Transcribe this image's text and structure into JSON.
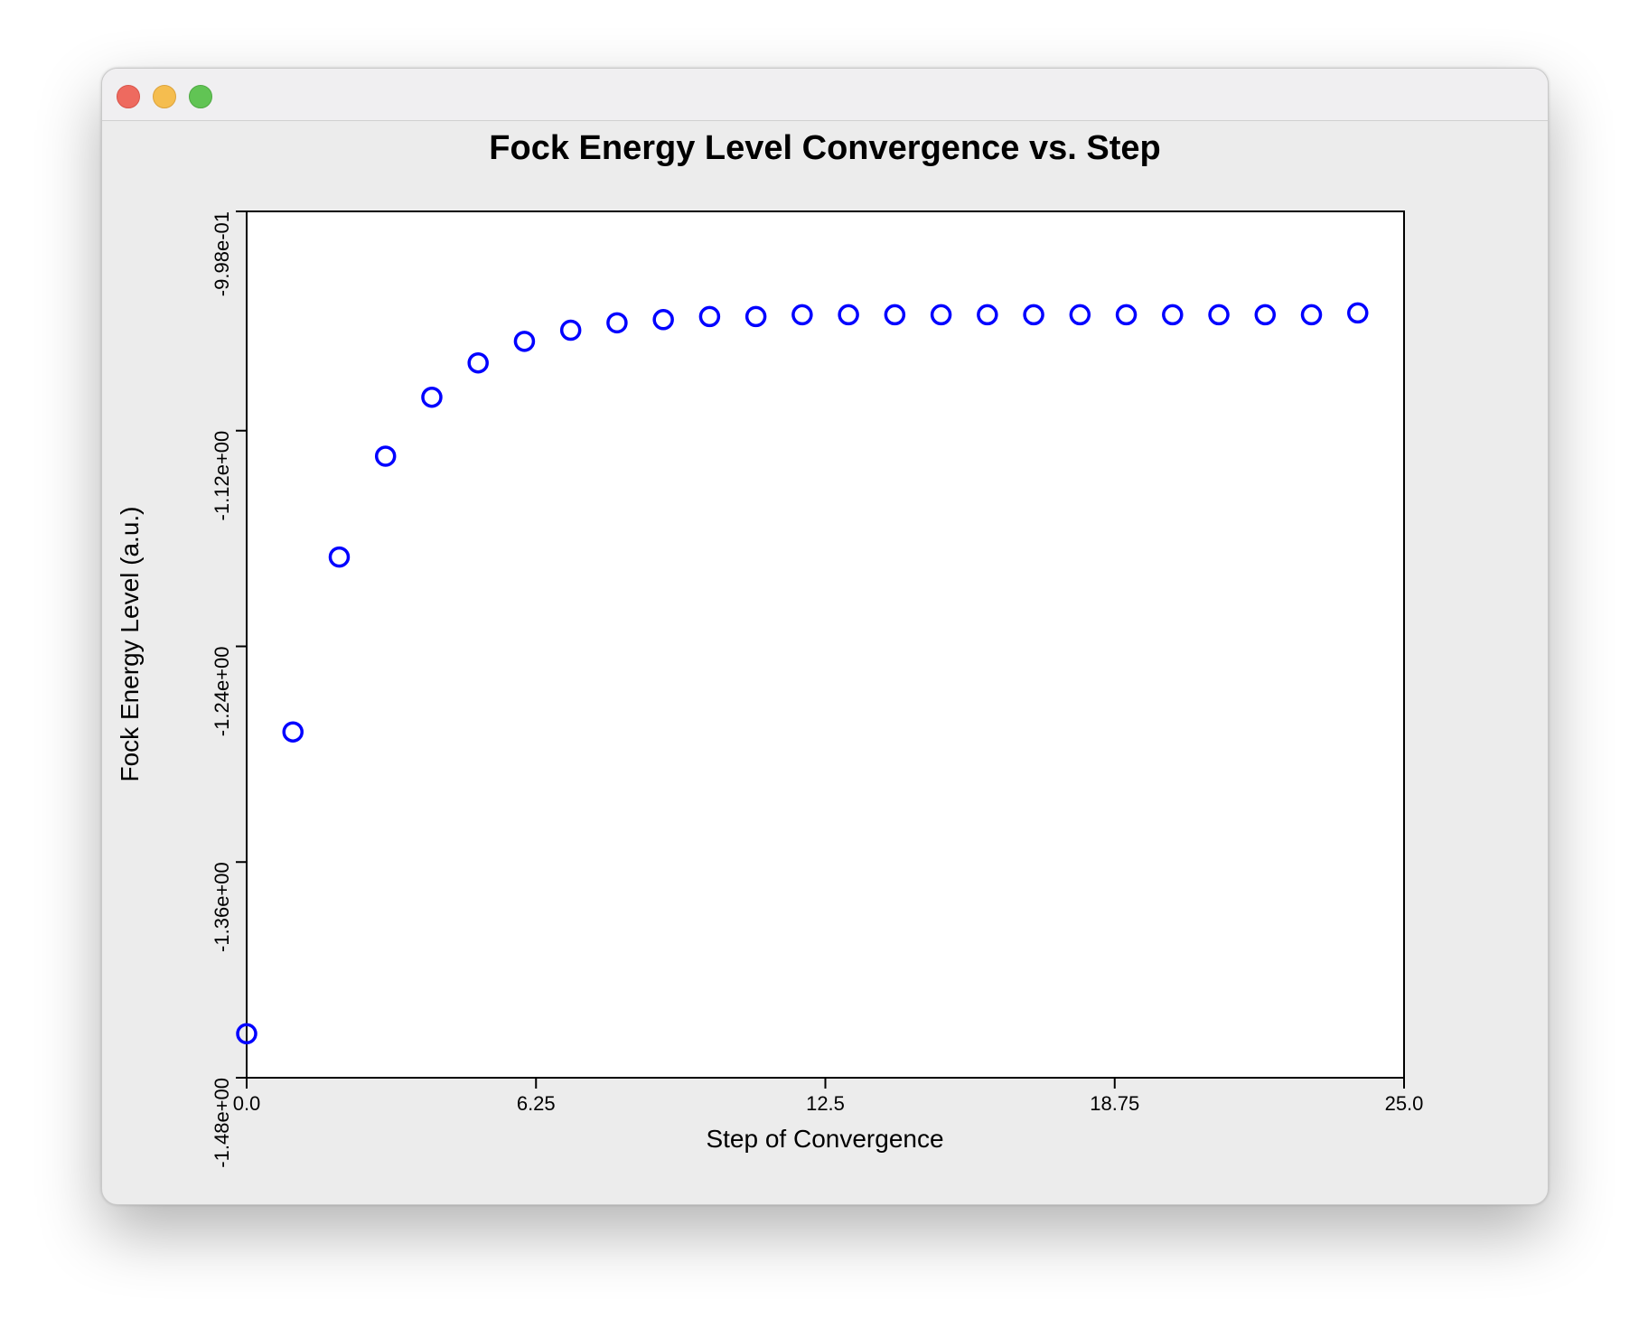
{
  "window": {
    "controls": [
      "close",
      "minimize",
      "zoom"
    ]
  },
  "chart_data": {
    "type": "scatter",
    "title": "Fock Energy Level Convergence vs. Step",
    "xlabel": "Step of Convergence",
    "ylabel": "Fock Energy Level (a.u.)",
    "xlim": [
      0.0,
      25.0
    ],
    "ylim": [
      -1.48,
      -0.998
    ],
    "x_ticks": [
      0.0,
      6.25,
      12.5,
      18.75,
      25.0
    ],
    "x_tick_labels": [
      "0.0",
      "6.25",
      "12.5",
      "18.75",
      "25.0"
    ],
    "y_ticks": [
      -1.48,
      -1.36,
      -1.24,
      -1.12,
      -0.998
    ],
    "y_tick_labels": [
      "-1.48e+00",
      "-1.36e+00",
      "-1.24e+00",
      "-1.12e+00",
      "-9.98e-01"
    ],
    "grid": false,
    "marker": "open-circle",
    "marker_color": "#0000ff",
    "points": [
      {
        "x": 0,
        "y": -1.4555
      },
      {
        "x": 1,
        "y": -1.2876
      },
      {
        "x": 2,
        "y": -1.1903
      },
      {
        "x": 3,
        "y": -1.1342
      },
      {
        "x": 4,
        "y": -1.1014
      },
      {
        "x": 5,
        "y": -1.0823
      },
      {
        "x": 6,
        "y": -1.0703
      },
      {
        "x": 7,
        "y": -1.0641
      },
      {
        "x": 8,
        "y": -1.06
      },
      {
        "x": 9,
        "y": -1.0582
      },
      {
        "x": 10,
        "y": -1.0565
      },
      {
        "x": 11,
        "y": -1.0565
      },
      {
        "x": 12,
        "y": -1.0555
      },
      {
        "x": 13,
        "y": -1.0555
      },
      {
        "x": 14,
        "y": -1.0555
      },
      {
        "x": 15,
        "y": -1.0555
      },
      {
        "x": 16,
        "y": -1.0555
      },
      {
        "x": 17,
        "y": -1.0555
      },
      {
        "x": 18,
        "y": -1.0555
      },
      {
        "x": 19,
        "y": -1.0555
      },
      {
        "x": 20,
        "y": -1.0555
      },
      {
        "x": 21,
        "y": -1.0555
      },
      {
        "x": 22,
        "y": -1.0555
      },
      {
        "x": 23,
        "y": -1.0555
      },
      {
        "x": 24,
        "y": -1.0545
      }
    ]
  }
}
